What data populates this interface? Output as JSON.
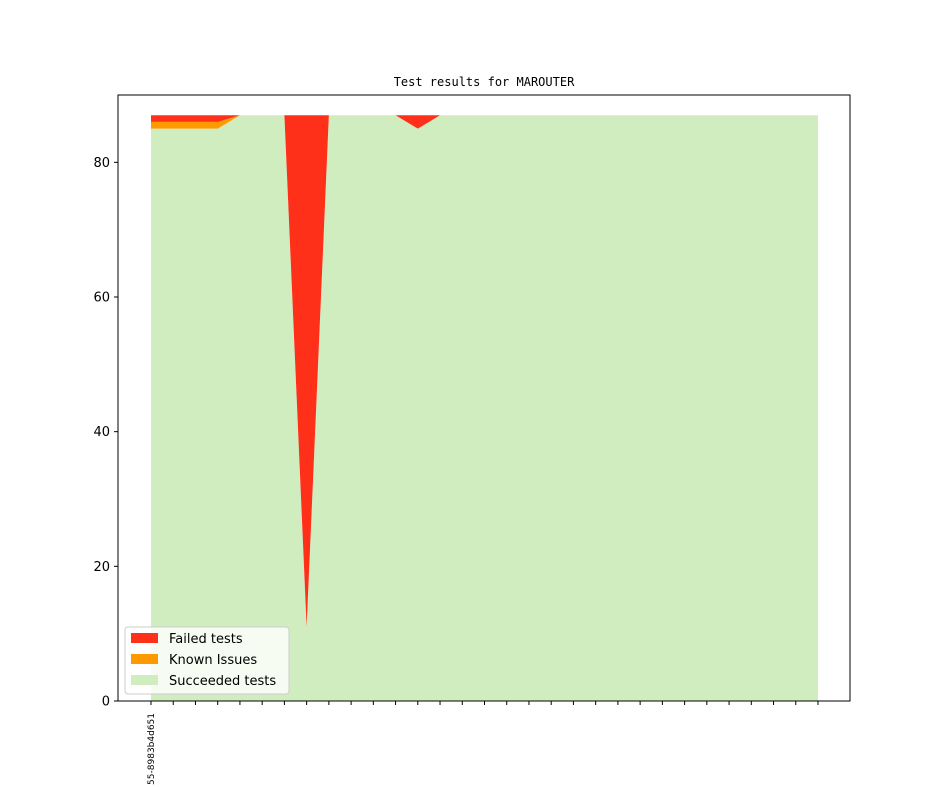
{
  "chart_data": {
    "type": "area",
    "stacked": true,
    "title": "Test results for MAROUTER",
    "xlabel": "",
    "ylabel": "",
    "ylim": [
      0,
      90
    ],
    "yticks": [
      0,
      20,
      40,
      60,
      80
    ],
    "x_count": 31,
    "x_tick_labels": [
      "55-8983b4d651"
    ],
    "grid": false,
    "legend_position": "lower-left",
    "series": [
      {
        "name": "Succeeded tests",
        "color": "#d0edbf",
        "values": [
          85,
          85,
          85,
          85,
          87,
          87,
          87,
          11,
          87,
          87,
          87,
          87,
          85,
          87,
          87,
          87,
          87,
          87,
          87,
          87,
          87,
          87,
          87,
          87,
          87,
          87,
          87,
          87,
          87,
          87,
          87
        ]
      },
      {
        "name": "Known Issues",
        "color": "#ff9900",
        "values": [
          1,
          1,
          1,
          1,
          0,
          0,
          0,
          0,
          0,
          0,
          0,
          0,
          0,
          0,
          0,
          0,
          0,
          0,
          0,
          0,
          0,
          0,
          0,
          0,
          0,
          0,
          0,
          0,
          0,
          0,
          0
        ]
      },
      {
        "name": "Failed tests",
        "color": "#ff3019",
        "values": [
          1,
          1,
          1,
          1,
          0,
          0,
          0,
          76,
          0,
          0,
          0,
          0,
          2,
          0,
          0,
          0,
          0,
          0,
          0,
          0,
          0,
          0,
          0,
          0,
          0,
          0,
          0,
          0,
          0,
          0,
          0
        ]
      }
    ],
    "legend_order": [
      "Failed tests",
      "Known Issues",
      "Succeeded tests"
    ]
  }
}
